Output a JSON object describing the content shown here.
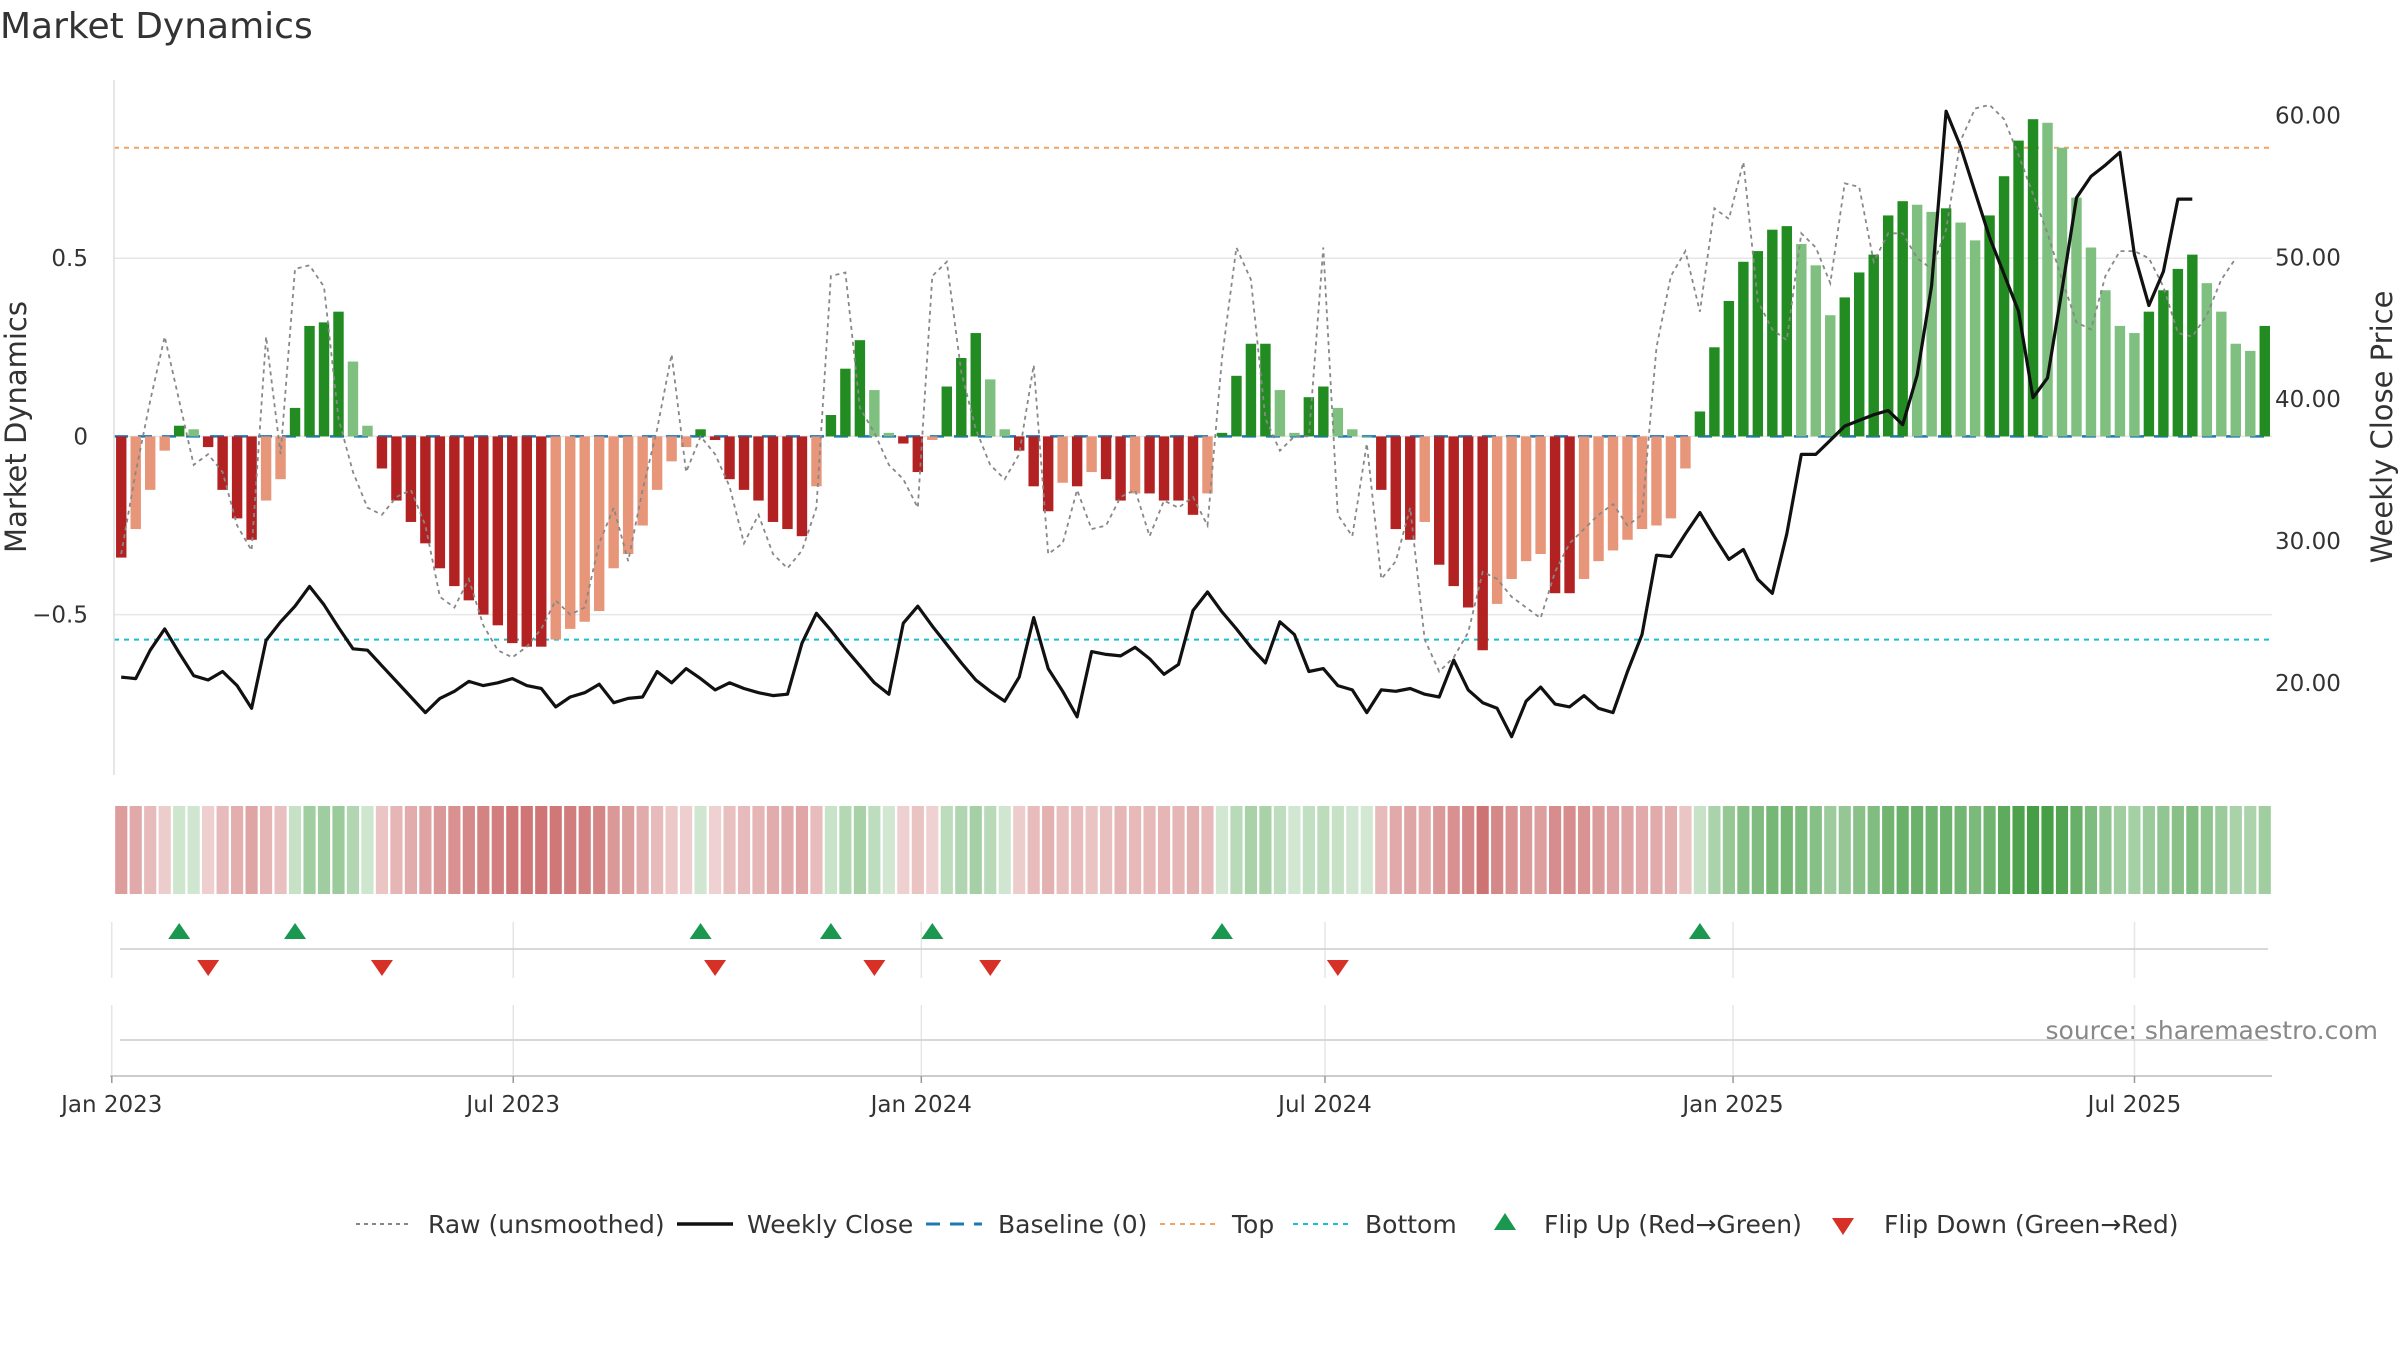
{
  "chart_data": {
    "type": "bar",
    "title": "Market Dynamics",
    "ylabel": "Market Dynamics",
    "y2label": "Weekly Close Price",
    "source": "source: sharemaestro.com",
    "x_start": "2023-01-02",
    "x_end": "2025-09-01",
    "ylim": [
      -0.95,
      1.0
    ],
    "y2lim": [
      13.5,
      62.5
    ],
    "y_ticks": [
      {
        "value": 0.5,
        "label": "0.5"
      },
      {
        "value": 0,
        "label": "0"
      },
      {
        "value": -0.5,
        "label": "−0.5"
      }
    ],
    "y2_ticks": [
      {
        "value": 60,
        "label": "60.00"
      },
      {
        "value": 50,
        "label": "50.00"
      },
      {
        "value": 40,
        "label": "40.00"
      },
      {
        "value": 30,
        "label": "30.00"
      },
      {
        "value": 20,
        "label": "20.00"
      }
    ],
    "x_ticks": [
      {
        "date": "2023-01-01",
        "label": "Jan 2023"
      },
      {
        "date": "2023-07-01",
        "label": "Jul 2023"
      },
      {
        "date": "2024-01-01",
        "label": "Jan 2024"
      },
      {
        "date": "2024-07-01",
        "label": "Jul 2024"
      },
      {
        "date": "2025-01-01",
        "label": "Jan 2025"
      },
      {
        "date": "2025-07-01",
        "label": "Jul 2025"
      }
    ],
    "top_level": 0.81,
    "bottom_level": -0.57,
    "baseline": 0,
    "dynamics": [
      -0.34,
      -0.26,
      -0.15,
      -0.04,
      0.03,
      0.02,
      -0.03,
      -0.15,
      -0.23,
      -0.29,
      -0.18,
      -0.12,
      0.08,
      0.31,
      0.32,
      0.35,
      0.21,
      0.03,
      -0.09,
      -0.18,
      -0.24,
      -0.3,
      -0.37,
      -0.42,
      -0.46,
      -0.5,
      -0.53,
      -0.58,
      -0.59,
      -0.59,
      -0.57,
      -0.54,
      -0.52,
      -0.49,
      -0.37,
      -0.33,
      -0.25,
      -0.15,
      -0.07,
      -0.03,
      0.02,
      -0.01,
      -0.12,
      -0.15,
      -0.18,
      -0.24,
      -0.26,
      -0.28,
      -0.14,
      0.06,
      0.19,
      0.27,
      0.13,
      0.01,
      -0.02,
      -0.1,
      -0.01,
      0.14,
      0.22,
      0.29,
      0.16,
      0.02,
      -0.04,
      -0.14,
      -0.21,
      -0.13,
      -0.14,
      -0.1,
      -0.12,
      -0.18,
      -0.16,
      -0.16,
      -0.18,
      -0.18,
      -0.22,
      -0.16,
      0.01,
      0.17,
      0.26,
      0.26,
      0.13,
      0.01,
      0.11,
      0.14,
      0.08,
      0.02,
      0.0,
      -0.15,
      -0.26,
      -0.29,
      -0.24,
      -0.36,
      -0.42,
      -0.48,
      -0.6,
      -0.47,
      -0.4,
      -0.35,
      -0.33,
      -0.44,
      -0.44,
      -0.4,
      -0.35,
      -0.32,
      -0.29,
      -0.26,
      -0.25,
      -0.23,
      -0.09,
      0.07,
      0.25,
      0.38,
      0.49,
      0.52,
      0.58,
      0.59,
      0.54,
      0.48,
      0.34,
      0.39,
      0.46,
      0.51,
      0.62,
      0.66,
      0.65,
      0.63,
      0.64,
      0.6,
      0.55,
      0.62,
      0.73,
      0.83,
      0.89,
      0.88,
      0.81,
      0.67,
      0.53,
      0.41,
      0.31,
      0.29,
      0.35,
      0.41,
      0.47,
      0.51,
      0.43,
      0.35,
      0.26,
      0.24,
      0.31
    ],
    "raw": [
      -0.33,
      -0.1,
      0.1,
      0.28,
      0.1,
      -0.08,
      -0.05,
      -0.1,
      -0.25,
      -0.32,
      0.28,
      -0.05,
      0.47,
      0.48,
      0.42,
      0.05,
      -0.1,
      -0.2,
      -0.22,
      -0.17,
      -0.15,
      -0.25,
      -0.45,
      -0.48,
      -0.4,
      -0.53,
      -0.6,
      -0.62,
      -0.59,
      -0.54,
      -0.46,
      -0.5,
      -0.48,
      -0.3,
      -0.2,
      -0.35,
      -0.15,
      0.02,
      0.23,
      -0.1,
      0.0,
      -0.05,
      -0.14,
      -0.3,
      -0.22,
      -0.33,
      -0.37,
      -0.32,
      -0.2,
      0.45,
      0.46,
      0.08,
      0.01,
      -0.08,
      -0.12,
      -0.2,
      0.45,
      0.49,
      0.18,
      0.02,
      -0.08,
      -0.12,
      -0.05,
      0.2,
      -0.33,
      -0.3,
      -0.15,
      -0.26,
      -0.25,
      -0.17,
      -0.15,
      -0.28,
      -0.18,
      -0.2,
      -0.17,
      -0.25,
      0.22,
      0.53,
      0.44,
      0.05,
      -0.04,
      0.0,
      0.0,
      0.53,
      -0.22,
      -0.28,
      -0.02,
      -0.4,
      -0.35,
      -0.2,
      -0.57,
      -0.66,
      -0.62,
      -0.55,
      -0.38,
      -0.4,
      -0.45,
      -0.48,
      -0.51,
      -0.38,
      -0.3,
      -0.26,
      -0.22,
      -0.19,
      -0.25,
      -0.22,
      0.25,
      0.45,
      0.52,
      0.35,
      0.64,
      0.61,
      0.77,
      0.38,
      0.3,
      0.27,
      0.57,
      0.53,
      0.43,
      0.71,
      0.7,
      0.49,
      0.57,
      0.57,
      0.5,
      0.47,
      0.58,
      0.83,
      0.92,
      0.93,
      0.89,
      0.79,
      0.68,
      0.57,
      0.44,
      0.32,
      0.3,
      0.45,
      0.52,
      0.52,
      0.5,
      0.42,
      0.29,
      0.28,
      0.34,
      0.44,
      0.5
    ],
    "close": [
      20.4,
      20.3,
      22.3,
      23.8,
      22.1,
      20.5,
      20.2,
      20.8,
      19.8,
      18.2,
      23.0,
      24.3,
      25.4,
      26.8,
      25.5,
      23.9,
      22.4,
      22.3,
      21.2,
      20.1,
      19.0,
      17.9,
      18.9,
      19.4,
      20.1,
      19.8,
      20.0,
      20.3,
      19.8,
      19.6,
      18.3,
      19.0,
      19.3,
      19.9,
      18.6,
      18.9,
      19.0,
      20.8,
      20.0,
      21.0,
      20.3,
      19.5,
      20.0,
      19.6,
      19.3,
      19.1,
      19.2,
      22.8,
      24.9,
      23.7,
      22.4,
      21.2,
      20.0,
      19.2,
      24.2,
      25.4,
      24.0,
      22.7,
      21.4,
      20.2,
      19.4,
      18.7,
      20.4,
      24.6,
      21.0,
      19.4,
      17.6,
      22.2,
      22.0,
      21.9,
      22.5,
      21.7,
      20.6,
      21.3,
      25.1,
      26.4,
      25.0,
      23.8,
      22.5,
      21.4,
      24.3,
      23.4,
      20.8,
      21.0,
      19.8,
      19.5,
      17.9,
      19.5,
      19.4,
      19.6,
      19.2,
      19.0,
      21.6,
      19.5,
      18.6,
      18.2,
      16.2,
      18.7,
      19.7,
      18.5,
      18.3,
      19.1,
      18.2,
      17.9,
      20.8,
      23.4,
      29.0,
      28.9,
      30.5,
      32.0,
      30.3,
      28.7,
      29.4,
      27.3,
      26.3,
      30.5,
      36.1,
      36.1,
      37.1,
      38.1,
      38.5,
      38.9,
      39.2,
      38.2,
      41.7,
      48.0,
      60.3,
      57.8,
      54.6,
      51.4,
      48.8,
      46.2,
      40.1,
      41.5,
      47.7,
      54.2,
      55.7,
      56.5,
      57.4,
      50.2,
      46.6,
      49.0,
      54.1,
      54.1
    ],
    "regime_strip": [
      -0.34,
      -0.26,
      -0.15,
      -0.04,
      0.03,
      0.02,
      -0.03,
      -0.15,
      -0.23,
      -0.29,
      -0.18,
      -0.12,
      0.08,
      0.31,
      0.32,
      0.35,
      0.21,
      0.03,
      -0.09,
      -0.18,
      -0.24,
      -0.3,
      -0.37,
      -0.42,
      -0.46,
      -0.5,
      -0.53,
      -0.58,
      -0.59,
      -0.59,
      -0.57,
      -0.54,
      -0.52,
      -0.49,
      -0.37,
      -0.33,
      -0.25,
      -0.15,
      -0.07,
      -0.03,
      0.02,
      -0.01,
      -0.12,
      -0.15,
      -0.18,
      -0.24,
      -0.26,
      -0.28,
      -0.14,
      0.06,
      0.19,
      0.27,
      0.13,
      0.01,
      -0.02,
      -0.1,
      -0.01,
      0.14,
      0.22,
      0.29,
      0.16,
      0.02,
      -0.04,
      -0.14,
      -0.21,
      -0.13,
      -0.14,
      -0.1,
      -0.12,
      -0.18,
      -0.16,
      -0.16,
      -0.18,
      -0.18,
      -0.22,
      -0.16,
      0.01,
      0.17,
      0.26,
      0.26,
      0.13,
      0.01,
      0.11,
      0.14,
      0.08,
      0.02,
      0.0,
      -0.15,
      -0.26,
      -0.29,
      -0.24,
      -0.36,
      -0.42,
      -0.48,
      -0.6,
      -0.47,
      -0.4,
      -0.35,
      -0.33,
      -0.44,
      -0.44,
      -0.4,
      -0.35,
      -0.32,
      -0.29,
      -0.26,
      -0.25,
      -0.23,
      -0.09,
      0.07,
      0.25,
      0.38,
      0.49,
      0.52,
      0.58,
      0.59,
      0.54,
      0.48,
      0.34,
      0.39,
      0.46,
      0.51,
      0.62,
      0.66,
      0.65,
      0.63,
      0.64,
      0.6,
      0.55,
      0.62,
      0.73,
      0.83,
      0.89,
      0.88,
      0.81,
      0.67,
      0.53,
      0.41,
      0.31,
      0.29,
      0.35,
      0.41,
      0.47,
      0.51,
      0.43,
      0.35,
      0.26,
      0.24,
      0.31
    ],
    "flip_up_weeks": [
      4,
      12,
      40,
      49,
      56,
      76,
      109
    ],
    "flip_down_weeks": [
      6,
      18,
      41,
      52,
      60,
      84
    ],
    "legend": {
      "raw": "Raw (unsmoothed)",
      "close": "Weekly Close",
      "baseline": "Baseline (0)",
      "top": "Top",
      "bottom": "Bottom",
      "flip_up": "Flip Up (Red→Green)",
      "flip_down": "Flip Down (Green→Red)"
    },
    "colors": {
      "strong_up": "#228b22",
      "weak_up": "#7fbf7f",
      "strong_down": "#b22222",
      "weak_down": "#e8967a",
      "raw": "#888888",
      "close": "#111111",
      "baseline": "#1f77b4",
      "top": "#f4a261",
      "bottom": "#17becf",
      "flip_up": "#1a9850",
      "flip_down": "#d73027",
      "grid": "#e6e6e6"
    }
  }
}
